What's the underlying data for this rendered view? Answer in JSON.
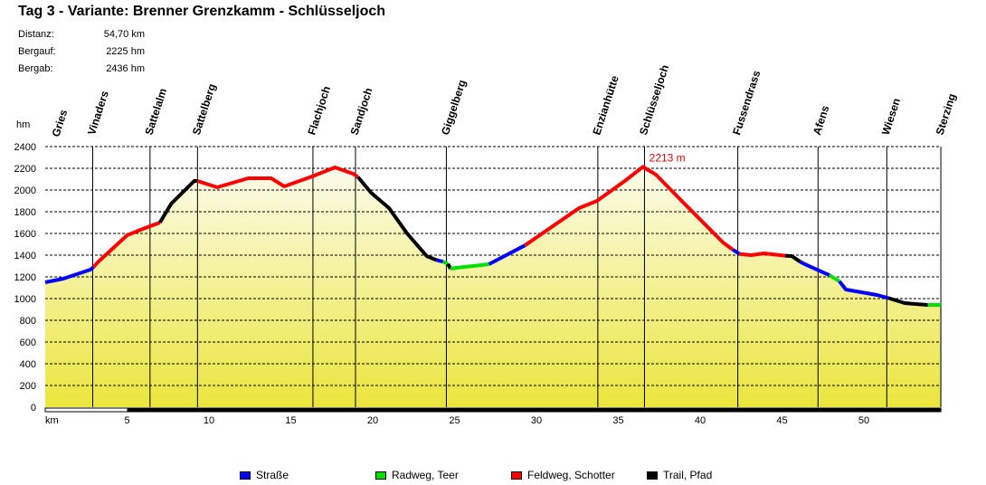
{
  "chart_data": {
    "type": "area",
    "title": "Tag 3 - Variante: Brenner Grenzkamm - Schlüsseljoch",
    "stats": [
      {
        "label": "Distanz:",
        "value": "54,70 km"
      },
      {
        "label": "Bergauf:",
        "value": "2225 hm"
      },
      {
        "label": "Bergab:",
        "value": "2436 hm"
      }
    ],
    "xlabel": "km",
    "ylabel": "hm",
    "xlim": [
      0,
      54.7
    ],
    "ylim": [
      0,
      2400
    ],
    "xticks": [
      5,
      10,
      15,
      20,
      25,
      30,
      35,
      40,
      45,
      50
    ],
    "yticks": [
      0,
      200,
      400,
      600,
      800,
      1000,
      1200,
      1400,
      1600,
      1800,
      2000,
      2200,
      2400
    ],
    "grid": true,
    "peak_annotation": {
      "km": 36.5,
      "text": "2213 m"
    },
    "surface_colors": {
      "strasse": "#0000ff",
      "radweg": "#00e000",
      "feldweg": "#ff0000",
      "trail": "#000000"
    },
    "legend": [
      {
        "key": "strasse",
        "label": "Straße"
      },
      {
        "key": "radweg",
        "label": "Radweg, Teer"
      },
      {
        "key": "feldweg",
        "label": "Feldweg, Schotter"
      },
      {
        "key": "trail",
        "label": "Trail, Pfad"
      }
    ],
    "waypoints": [
      {
        "name": "Gries",
        "km": 0
      },
      {
        "name": "Vinaders",
        "km": 2.9
      },
      {
        "name": "Sattelalm",
        "km": 6.4
      },
      {
        "name": "Sattelberg",
        "km": 9.3
      },
      {
        "name": "Flachjoch",
        "km": 16.35
      },
      {
        "name": "Sandjoch",
        "km": 18.95
      },
      {
        "name": "Giggelberg",
        "km": 24.5
      },
      {
        "name": "Enzianhütte",
        "km": 33.75
      },
      {
        "name": "Schlüsseljoch",
        "km": 36.6
      },
      {
        "name": "Fussendrass",
        "km": 42.3
      },
      {
        "name": "Afens",
        "km": 47.2
      },
      {
        "name": "Wiesen",
        "km": 51.4
      },
      {
        "name": "Sterzing",
        "km": 54.7
      }
    ],
    "segments": [
      {
        "type": "strasse",
        "points": [
          [
            0,
            1150
          ],
          [
            1.1,
            1183
          ],
          [
            2.76,
            1267
          ],
          [
            2.95,
            1290
          ]
        ]
      },
      {
        "type": "feldweg",
        "points": [
          [
            2.95,
            1290
          ],
          [
            3.2,
            1333
          ],
          [
            5.0,
            1583
          ],
          [
            6.1,
            1650
          ],
          [
            7.0,
            1700
          ]
        ]
      },
      {
        "type": "trail",
        "points": [
          [
            7.0,
            1700
          ],
          [
            7.7,
            1875
          ],
          [
            9.1,
            2083
          ],
          [
            9.3,
            2083
          ]
        ]
      },
      {
        "type": "feldweg",
        "points": [
          [
            9.3,
            2083
          ],
          [
            10.5,
            2025
          ],
          [
            12.4,
            2108
          ],
          [
            13.8,
            2108
          ],
          [
            14.6,
            2033
          ],
          [
            16.3,
            2125
          ],
          [
            17.7,
            2208
          ],
          [
            18.8,
            2150
          ],
          [
            19.1,
            2120
          ]
        ]
      },
      {
        "type": "trail",
        "points": [
          [
            19.1,
            2120
          ],
          [
            19.9,
            1975
          ],
          [
            21,
            1833
          ],
          [
            22.1,
            1600
          ],
          [
            23.3,
            1392
          ],
          [
            23.9,
            1355
          ]
        ]
      },
      {
        "type": "strasse",
        "points": [
          [
            23.9,
            1355
          ],
          [
            24.3,
            1340
          ]
        ]
      },
      {
        "type": "radweg",
        "points": [
          [
            24.3,
            1340
          ],
          [
            24.6,
            1320
          ]
        ]
      },
      {
        "type": "trail",
        "points": [
          [
            24.6,
            1320
          ],
          [
            24.75,
            1275
          ]
        ]
      },
      {
        "type": "radweg",
        "points": [
          [
            24.75,
            1275
          ],
          [
            25.1,
            1283
          ],
          [
            27.1,
            1317
          ]
        ]
      },
      {
        "type": "strasse",
        "points": [
          [
            27.1,
            1317
          ],
          [
            29.3,
            1490
          ]
        ]
      },
      {
        "type": "feldweg",
        "points": [
          [
            29.3,
            1490
          ],
          [
            32.6,
            1833
          ],
          [
            33.7,
            1900
          ],
          [
            35.4,
            2083
          ],
          [
            36.5,
            2213
          ],
          [
            37.3,
            2142
          ],
          [
            39.2,
            1850
          ],
          [
            41.4,
            1517
          ],
          [
            42.0,
            1450
          ]
        ]
      },
      {
        "type": "strasse",
        "points": [
          [
            42.0,
            1450
          ],
          [
            42.4,
            1412
          ]
        ]
      },
      {
        "type": "feldweg",
        "points": [
          [
            42.4,
            1412
          ],
          [
            43.1,
            1400
          ],
          [
            43.9,
            1417
          ],
          [
            45.2,
            1395
          ]
        ]
      },
      {
        "type": "trail",
        "points": [
          [
            45.2,
            1395
          ],
          [
            45.6,
            1392
          ],
          [
            46.1,
            1340
          ]
        ]
      },
      {
        "type": "strasse",
        "points": [
          [
            46.1,
            1340
          ],
          [
            46.4,
            1317
          ],
          [
            47.9,
            1215
          ]
        ]
      },
      {
        "type": "radweg",
        "points": [
          [
            47.9,
            1215
          ],
          [
            48.5,
            1160
          ]
        ]
      },
      {
        "type": "strasse",
        "points": [
          [
            48.5,
            1160
          ],
          [
            48.9,
            1083
          ],
          [
            50.8,
            1033
          ],
          [
            51.5,
            1005
          ]
        ]
      },
      {
        "type": "trail",
        "points": [
          [
            51.5,
            1005
          ],
          [
            52.5,
            958
          ],
          [
            53.9,
            942
          ]
        ]
      },
      {
        "type": "radweg",
        "points": [
          [
            53.9,
            942
          ],
          [
            54.7,
            942
          ]
        ]
      }
    ]
  }
}
